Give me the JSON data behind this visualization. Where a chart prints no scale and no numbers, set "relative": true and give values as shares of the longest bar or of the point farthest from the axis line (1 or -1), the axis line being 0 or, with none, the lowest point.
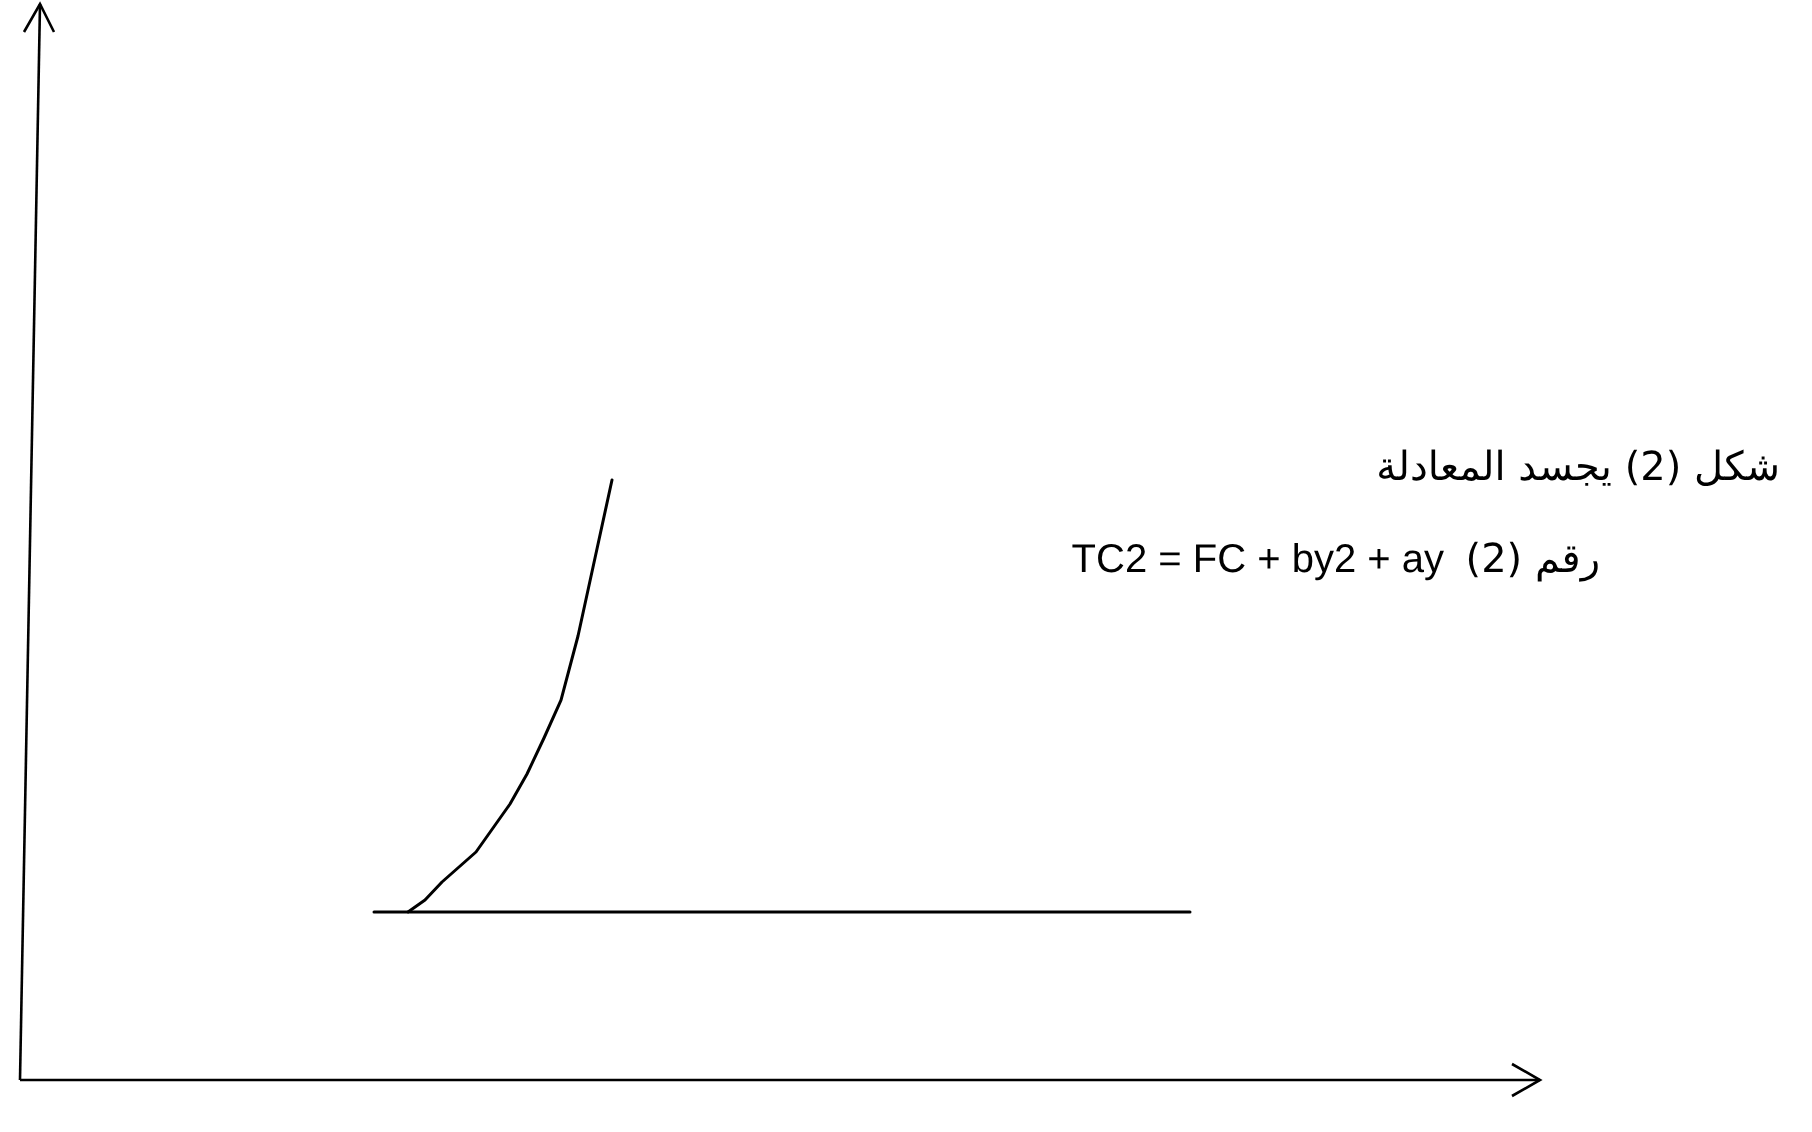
{
  "chart_data": {
    "type": "line",
    "relative": true,
    "marker": "none",
    "line_style": "solid",
    "categories": [
      null,
      null,
      null,
      null,
      null,
      null,
      null,
      null,
      null,
      null,
      null,
      null,
      null,
      null,
      null,
      null,
      null,
      null,
      null,
      null,
      null,
      null,
      null,
      null,
      null,
      null,
      null,
      null,
      null,
      null,
      null,
      null,
      null,
      null,
      null,
      null,
      null,
      null,
      null,
      null,
      null,
      null,
      null,
      null,
      null,
      null,
      null,
      null,
      null
    ],
    "series": [
      {
        "color": "#000000",
        "values": [
          null,
          null,
          0.28,
          0.3,
          0.33,
          0.355,
          0.38,
          0.42,
          0.46,
          0.51,
          0.57,
          0.633,
          0.74,
          0.87,
          1,
          null,
          null,
          null,
          null,
          null,
          null,
          null,
          null,
          null,
          null,
          null,
          null,
          null,
          null,
          null,
          null,
          null,
          null,
          null,
          null,
          null,
          null,
          null,
          null,
          null,
          null,
          null,
          null,
          null,
          null,
          null,
          null,
          null,
          null
        ]
      },
      {
        "color": "#000000",
        "values": [
          0.28,
          0.28,
          0.28,
          0.28,
          0.28,
          0.28,
          0.28,
          0.28,
          0.28,
          0.28,
          0.28,
          0.28,
          0.28,
          0.28,
          0.28,
          0.28,
          0.28,
          0.28,
          0.28,
          0.28,
          0.28,
          0.28,
          0.28,
          0.28,
          0.28,
          0.28,
          0.28,
          0.28,
          0.28,
          0.28,
          0.28,
          0.28,
          0.28,
          0.28,
          0.28,
          0.28,
          0.28,
          0.28,
          0.28,
          0.28,
          0.28,
          0.28,
          0.28,
          0.28,
          0.28,
          0.28,
          0.28,
          0.28,
          0.28
        ]
      }
    ],
    "annotations": [
      "شكل (2) يجسد المعادلة",
      "رقم (2)",
      "TC2 = FC + by2 + ay"
    ]
  }
}
